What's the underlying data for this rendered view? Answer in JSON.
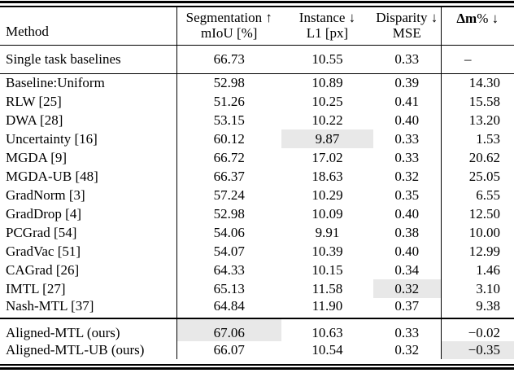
{
  "highlight_color": "#e8e8e8",
  "header": {
    "method_label": "Method",
    "cols": [
      {
        "line1": "Segmentation ↑",
        "line2": "mIoU [%]"
      },
      {
        "line1": "Instance ↓",
        "line2": "L1 [px]"
      },
      {
        "line1": "Disparity ↓",
        "line2": "MSE"
      }
    ],
    "delta": {
      "bold_part": "Δm",
      "rest_part": "% ↓"
    }
  },
  "sections": [
    {
      "name": "single-task-baselines",
      "rows": [
        {
          "method": "Single task baselines",
          "values": [
            "66.73",
            "10.55",
            "0.33",
            "–"
          ]
        }
      ]
    },
    {
      "name": "mtl-methods",
      "rows": [
        {
          "method": "Baseline:Uniform",
          "values": [
            "52.98",
            "10.89",
            "0.39",
            "14.30"
          ]
        },
        {
          "method": "RLW [25]",
          "values": [
            "51.26",
            "10.25",
            "0.41",
            "15.58"
          ]
        },
        {
          "method": "DWA [28]",
          "values": [
            "53.15",
            "10.22",
            "0.40",
            "13.20"
          ]
        },
        {
          "method": "Uncertainty [16]",
          "values": [
            "60.12",
            "9.87",
            "0.33",
            "1.53"
          ],
          "highlight": 1
        },
        {
          "method": "MGDA [9]",
          "values": [
            "66.72",
            "17.02",
            "0.33",
            "20.62"
          ]
        },
        {
          "method": "MGDA-UB [48]",
          "values": [
            "66.37",
            "18.63",
            "0.32",
            "25.05"
          ]
        },
        {
          "method": "GradNorm [3]",
          "values": [
            "57.24",
            "10.29",
            "0.35",
            "6.55"
          ]
        },
        {
          "method": "GradDrop [4]",
          "values": [
            "52.98",
            "10.09",
            "0.40",
            "12.50"
          ]
        },
        {
          "method": "PCGrad [54]",
          "values": [
            "54.06",
            "9.91",
            "0.38",
            "10.00"
          ]
        },
        {
          "method": "GradVac [51]",
          "values": [
            "54.07",
            "10.39",
            "0.40",
            "12.99"
          ]
        },
        {
          "method": "CAGrad [26]",
          "values": [
            "64.33",
            "10.15",
            "0.34",
            "1.46"
          ]
        },
        {
          "method": "IMTL [27]",
          "values": [
            "65.13",
            "11.58",
            "0.32",
            "3.10"
          ],
          "highlight": 2
        },
        {
          "method": "Nash-MTL [37]",
          "values": [
            "64.84",
            "11.90",
            "0.37",
            "9.38"
          ]
        }
      ]
    },
    {
      "name": "ours",
      "rows": [
        {
          "method": "Aligned-MTL (ours)",
          "values": [
            "67.06",
            "10.63",
            "0.33",
            "−0.02"
          ],
          "highlight": 0
        },
        {
          "method": "Aligned-MTL-UB (ours)",
          "values": [
            "66.07",
            "10.54",
            "0.32",
            "−0.35"
          ],
          "highlight": 3
        }
      ]
    }
  ]
}
